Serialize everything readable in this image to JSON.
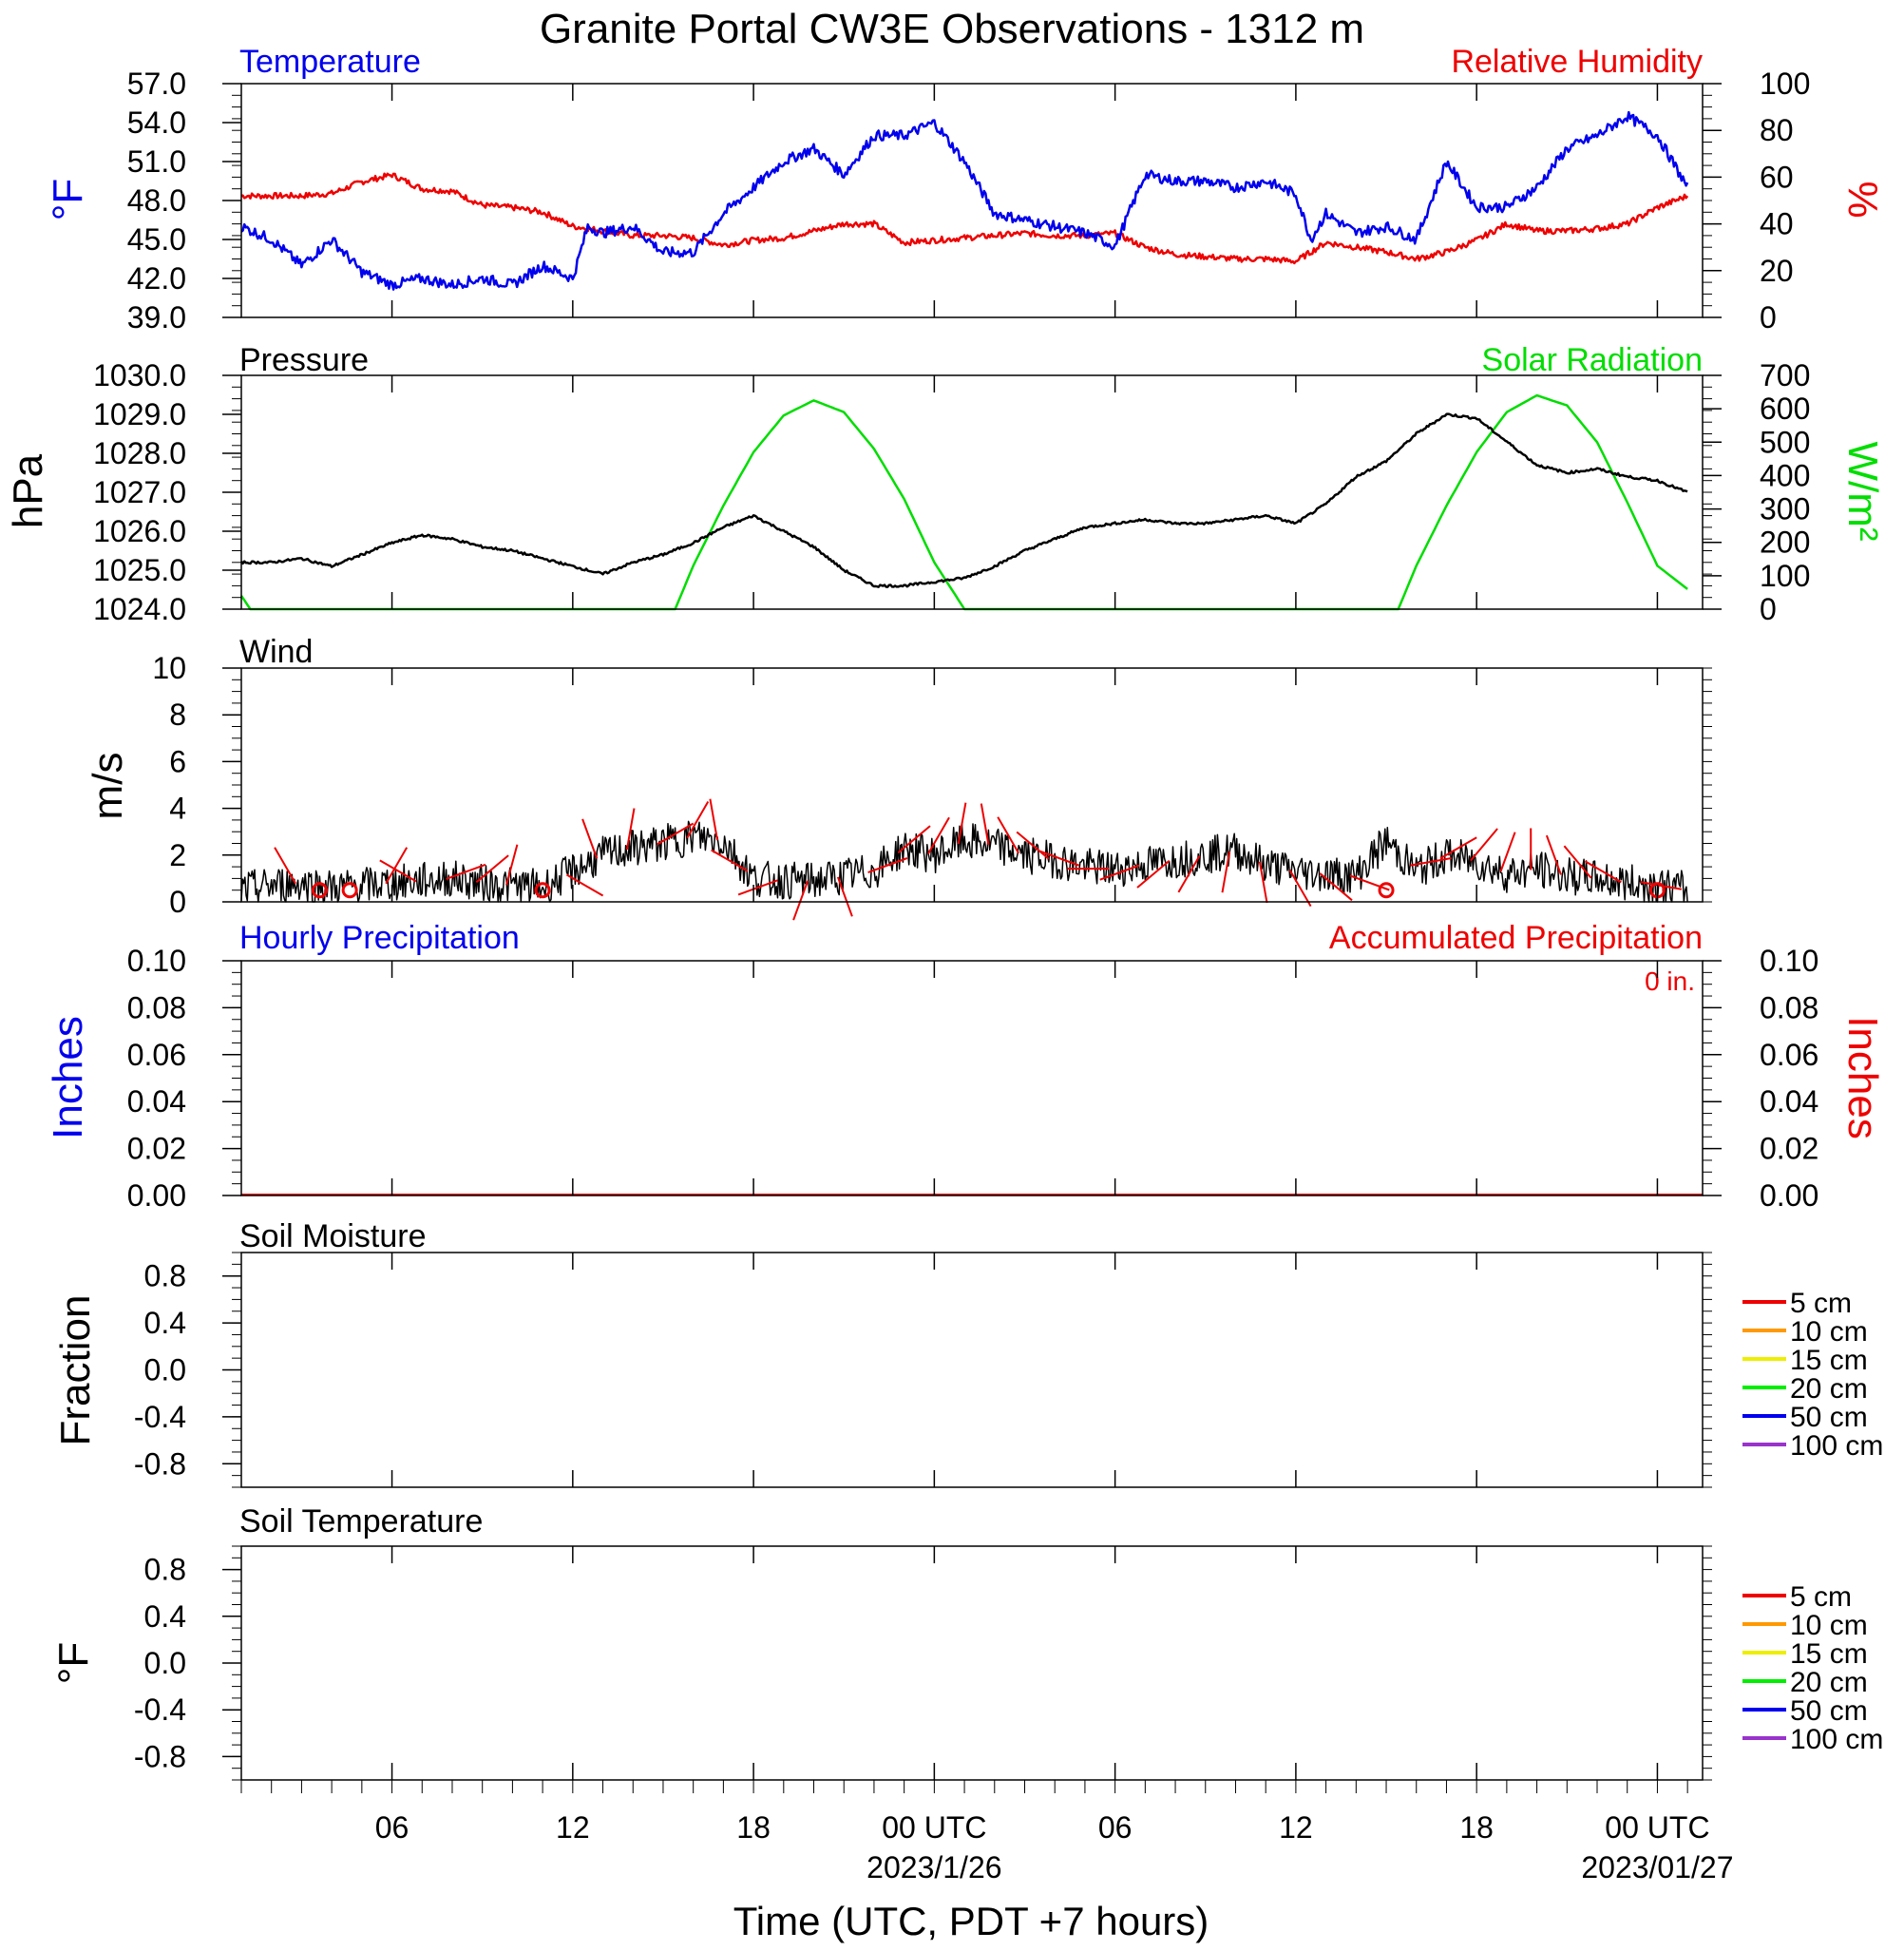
{
  "title": "Granite Portal CW3E Observations - 1312 m",
  "x_axis": {
    "label": "Time (UTC, PDT +7 hours)",
    "range_hours": [
      0,
      48.5
    ],
    "major_ticks": [
      {
        "hour": 5,
        "lines": [
          "06"
        ]
      },
      {
        "hour": 11,
        "lines": [
          "12"
        ]
      },
      {
        "hour": 17,
        "lines": [
          "18"
        ]
      },
      {
        "hour": 23,
        "lines": [
          "00 UTC",
          "2023/1/26"
        ]
      },
      {
        "hour": 29,
        "lines": [
          "06"
        ]
      },
      {
        "hour": 35,
        "lines": [
          "12"
        ]
      },
      {
        "hour": 41,
        "lines": [
          "18"
        ]
      },
      {
        "hour": 47,
        "lines": [
          "00 UTC",
          "2023/01/27"
        ]
      }
    ]
  },
  "panels": {
    "temp_rh": {
      "left_title": "Temperature",
      "right_title": "Relative Humidity",
      "left_unit": "°F",
      "right_unit": "%",
      "left_ticks": [
        "57.0",
        "54.0",
        "51.0",
        "48.0",
        "45.0",
        "42.0",
        "39.0"
      ],
      "right_ticks": [
        "100",
        "80",
        "60",
        "40",
        "20",
        "0"
      ]
    },
    "pressure_solar": {
      "left_title": "Pressure",
      "right_title": "Solar Radiation",
      "left_unit": "hPa",
      "right_unit": "W/m²",
      "left_ticks": [
        "1030.0",
        "1029.0",
        "1028.0",
        "1027.0",
        "1026.0",
        "1025.0",
        "1024.0"
      ],
      "right_ticks": [
        "700",
        "600",
        "500",
        "400",
        "300",
        "200",
        "100",
        "0"
      ]
    },
    "wind": {
      "left_title": "Wind",
      "left_unit": "m/s",
      "left_ticks": [
        "10",
        "8",
        "6",
        "4",
        "2",
        "0"
      ]
    },
    "precip": {
      "left_title": "Hourly Precipitation",
      "right_title": "Accumulated Precipitation",
      "total_label": "0 in.",
      "left_unit": "Inches",
      "right_unit": "Inches",
      "left_ticks": [
        "0.10",
        "0.08",
        "0.06",
        "0.04",
        "0.02",
        "0.00"
      ],
      "right_ticks": [
        "0.10",
        "0.08",
        "0.06",
        "0.04",
        "0.02",
        "0.00"
      ]
    },
    "soil_moisture": {
      "left_title": "Soil Moisture",
      "left_unit": "Fraction",
      "left_ticks": [
        "0.8",
        "0.4",
        "0.0",
        "-0.4",
        "-0.8"
      ],
      "legend": [
        "5 cm",
        "10 cm",
        "15 cm",
        "20 cm",
        "50 cm",
        "100 cm"
      ]
    },
    "soil_temp": {
      "left_title": "Soil Temperature",
      "left_unit": "°F",
      "left_ticks": [
        "0.8",
        "0.4",
        "0.0",
        "-0.4",
        "-0.8"
      ],
      "legend": [
        "5 cm",
        "10 cm",
        "15 cm",
        "20 cm",
        "50 cm",
        "100 cm"
      ]
    }
  },
  "colors": {
    "temperature": "#0000ee",
    "relative_humidity": "#ee0000",
    "pressure": "#000000",
    "solar": "#00dd00",
    "wind_speed": "#000000",
    "wind_barb": "#ee0000",
    "hourly_precip": "#0000ee",
    "accum_precip": "#ee0000",
    "legend": [
      "#ee0000",
      "#ff9900",
      "#eeee00",
      "#00ee00",
      "#0000ee",
      "#9933cc"
    ]
  },
  "chart_data": [
    {
      "type": "line",
      "title": "Temperature",
      "ylabel": "°F",
      "ylim": [
        39,
        57
      ],
      "series": [
        {
          "name": "Temperature",
          "x": [
            0,
            1,
            2,
            3,
            4,
            5,
            6,
            7,
            8,
            9,
            10,
            11,
            11.5,
            12,
            13,
            14,
            15,
            16,
            17,
            18,
            19,
            20,
            21,
            22,
            23,
            24,
            25,
            26,
            27,
            28,
            29,
            30,
            31,
            32,
            33,
            34,
            35,
            35.5,
            36,
            37,
            38,
            39,
            40,
            41,
            42,
            43,
            44,
            45,
            46,
            47,
            48
          ],
          "y": [
            46,
            45,
            43,
            45,
            42.5,
            41.5,
            42,
            41.5,
            42,
            41.5,
            43,
            42,
            46,
            45.5,
            46,
            44,
            44,
            47,
            49,
            51,
            52,
            50,
            53,
            53,
            54,
            51,
            47,
            46.5,
            46,
            45.5,
            44.5,
            50,
            49.5,
            49.5,
            49,
            49.5,
            48.5,
            45,
            47,
            45.5,
            46,
            45,
            51,
            47.5,
            47.5,
            49,
            52,
            53,
            54.5,
            53,
            49
          ]
        }
      ]
    },
    {
      "type": "line",
      "title": "Relative Humidity",
      "ylabel": "%",
      "ylim": [
        0,
        100
      ],
      "series": [
        {
          "name": "Relative Humidity",
          "x": [
            0,
            1,
            2,
            3,
            4,
            5,
            6,
            7,
            8,
            9,
            10,
            11,
            12,
            13,
            14,
            15,
            16,
            17,
            18,
            19,
            20,
            21,
            22,
            23,
            24,
            25,
            26,
            27,
            28,
            29,
            30,
            31,
            32,
            33,
            34,
            35,
            36,
            37,
            38,
            39,
            40,
            41,
            42,
            43,
            44,
            45,
            46,
            47,
            48
          ],
          "y": [
            52,
            52,
            52,
            53,
            58,
            61,
            55,
            54,
            48,
            47,
            45,
            39,
            37,
            35,
            35,
            34,
            31,
            33,
            34,
            37,
            40,
            40,
            32,
            33,
            34,
            35,
            36,
            35,
            35,
            36,
            30,
            27,
            26,
            25,
            25,
            24,
            32,
            30,
            28,
            25,
            28,
            33,
            40,
            37,
            37,
            38,
            40,
            47,
            52
          ]
        }
      ]
    },
    {
      "type": "line",
      "title": "Pressure",
      "ylabel": "hPa",
      "ylim": [
        1024,
        1030
      ],
      "series": [
        {
          "name": "Pressure",
          "x": [
            0,
            1,
            2,
            3,
            4,
            5,
            6,
            7,
            8,
            9,
            10,
            11,
            12,
            13,
            14,
            15,
            16,
            17,
            18,
            19,
            20,
            21,
            22,
            23,
            24,
            25,
            26,
            27,
            28,
            29,
            30,
            31,
            32,
            33,
            34,
            35,
            36,
            37,
            38,
            39,
            40,
            41,
            42,
            43,
            44,
            45,
            46,
            47,
            48
          ],
          "y": [
            1025.2,
            1025.2,
            1025.3,
            1025.1,
            1025.4,
            1025.7,
            1025.9,
            1025.8,
            1025.6,
            1025.5,
            1025.3,
            1025.1,
            1024.9,
            1025.2,
            1025.4,
            1025.7,
            1026.1,
            1026.4,
            1026.0,
            1025.6,
            1025.0,
            1024.6,
            1024.6,
            1024.7,
            1024.8,
            1025.1,
            1025.5,
            1025.8,
            1026.1,
            1026.2,
            1026.3,
            1026.2,
            1026.2,
            1026.3,
            1026.4,
            1026.2,
            1026.7,
            1027.4,
            1027.8,
            1028.5,
            1029.0,
            1028.9,
            1028.3,
            1027.7,
            1027.5,
            1027.6,
            1027.4,
            1027.3,
            1027.0
          ]
        }
      ]
    },
    {
      "type": "line",
      "title": "Solar Radiation",
      "ylabel": "W/m²",
      "ylim": [
        0,
        700
      ],
      "series": [
        {
          "name": "Solar Radiation",
          "x": [
            0,
            0.3,
            14.4,
            15,
            16,
            17,
            18,
            19,
            20,
            21,
            22,
            23,
            24,
            38.4,
            39,
            40,
            41,
            42,
            43,
            44,
            45,
            46,
            47,
            48
          ],
          "y": [
            40,
            0,
            0,
            130,
            310,
            470,
            580,
            625,
            590,
            480,
            330,
            140,
            0,
            0,
            130,
            310,
            470,
            590,
            640,
            610,
            500,
            320,
            130,
            60
          ]
        }
      ]
    },
    {
      "type": "line",
      "title": "Wind",
      "ylabel": "m/s",
      "ylim": [
        0,
        10
      ],
      "series": [
        {
          "name": "Wind",
          "x": [
            0,
            1,
            2,
            3,
            4,
            5,
            6,
            7,
            8,
            9,
            10,
            11,
            12,
            13,
            14,
            15,
            16,
            17,
            18,
            19,
            20,
            21,
            22,
            23,
            24,
            25,
            26,
            27,
            28,
            29,
            30,
            31,
            32,
            33,
            34,
            35,
            36,
            37,
            38,
            39,
            40,
            41,
            42,
            43,
            44,
            45,
            46,
            47,
            48
          ],
          "y": [
            0.5,
            0.7,
            0.8,
            0.6,
            0.7,
            0.8,
            0.9,
            1.0,
            0.8,
            0.7,
            0.6,
            1.3,
            2.0,
            2.3,
            2.5,
            2.8,
            2.6,
            1.0,
            0.9,
            0.9,
            1.1,
            1.3,
            2.3,
            2.0,
            2.6,
            2.4,
            2.0,
            1.8,
            1.5,
            1.4,
            1.6,
            1.8,
            2.0,
            2.2,
            1.6,
            1.3,
            1.2,
            1.1,
            2.6,
            1.3,
            2.0,
            1.7,
            1.2,
            1.4,
            1.1,
            1.0,
            0.8,
            0.7,
            0.5
          ]
        }
      ]
    },
    {
      "type": "line",
      "title": "Hourly Precipitation",
      "ylabel": "Inches",
      "ylim": [
        0,
        0.1
      ],
      "series": [
        {
          "name": "Hourly Precipitation",
          "x": [
            0,
            48
          ],
          "y": [
            0,
            0
          ]
        },
        {
          "name": "Accumulated Precipitation",
          "x": [
            0,
            48
          ],
          "y": [
            0,
            0
          ]
        }
      ]
    },
    {
      "type": "line",
      "title": "Soil Moisture",
      "ylabel": "Fraction",
      "ylim": [
        -1,
        1
      ],
      "series": [
        {
          "name": "5 cm",
          "x": [],
          "y": []
        },
        {
          "name": "10 cm",
          "x": [],
          "y": []
        },
        {
          "name": "15 cm",
          "x": [],
          "y": []
        },
        {
          "name": "20 cm",
          "x": [],
          "y": []
        },
        {
          "name": "50 cm",
          "x": [],
          "y": []
        },
        {
          "name": "100 cm",
          "x": [],
          "y": []
        }
      ]
    },
    {
      "type": "line",
      "title": "Soil Temperature",
      "ylabel": "°F",
      "ylim": [
        -1,
        1
      ],
      "series": [
        {
          "name": "5 cm",
          "x": [],
          "y": []
        },
        {
          "name": "10 cm",
          "x": [],
          "y": []
        },
        {
          "name": "15 cm",
          "x": [],
          "y": []
        },
        {
          "name": "20 cm",
          "x": [],
          "y": []
        },
        {
          "name": "50 cm",
          "x": [],
          "y": []
        },
        {
          "name": "100 cm",
          "x": [],
          "y": []
        }
      ]
    }
  ]
}
